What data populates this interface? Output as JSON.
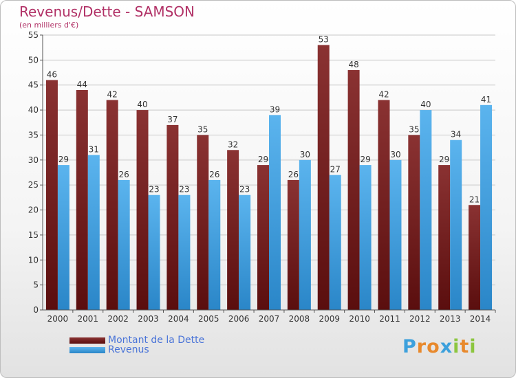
{
  "header": {
    "title": "Revenus/Dette - SAMSON",
    "subtitle": "(en milliers d'€)"
  },
  "legend": {
    "debt_label": "Montant de la Dette",
    "revenue_label": "Revenus"
  },
  "logo": {
    "text": "Proxiti",
    "letters": [
      "P",
      "r",
      "o",
      "x",
      "i",
      "t",
      "i"
    ],
    "letter_colors": [
      "#3ca0dc",
      "#e8892c",
      "#e8892c",
      "#3ca0dc",
      "#8cc63f",
      "#e8892c",
      "#8cc63f"
    ]
  },
  "colors": {
    "debt": "#7a1d1d",
    "revenue": "#3aa0e0",
    "axis": "#555555",
    "grid": "#c8c8c8"
  },
  "chart_data": {
    "type": "bar",
    "title": "Revenus/Dette - SAMSON",
    "subtitle": "(en milliers d'€)",
    "xlabel": "",
    "ylabel": "",
    "ylim": [
      0,
      55
    ],
    "yticks": [
      0,
      5,
      10,
      15,
      20,
      25,
      30,
      35,
      40,
      45,
      50,
      55
    ],
    "grid": true,
    "legend_position": "bottom-left",
    "categories": [
      "2000",
      "2001",
      "2002",
      "2003",
      "2004",
      "2005",
      "2006",
      "2007",
      "2008",
      "2009",
      "2010",
      "2011",
      "2012",
      "2013",
      "2014"
    ],
    "series": [
      {
        "name": "Montant de la Dette",
        "values": [
          46,
          44,
          42,
          40,
          37,
          35,
          32,
          29,
          26,
          53,
          48,
          42,
          35,
          29,
          21
        ]
      },
      {
        "name": "Revenus",
        "values": [
          29,
          31,
          26,
          23,
          23,
          26,
          23,
          39,
          30,
          27,
          29,
          30,
          40,
          34,
          41
        ]
      }
    ]
  }
}
